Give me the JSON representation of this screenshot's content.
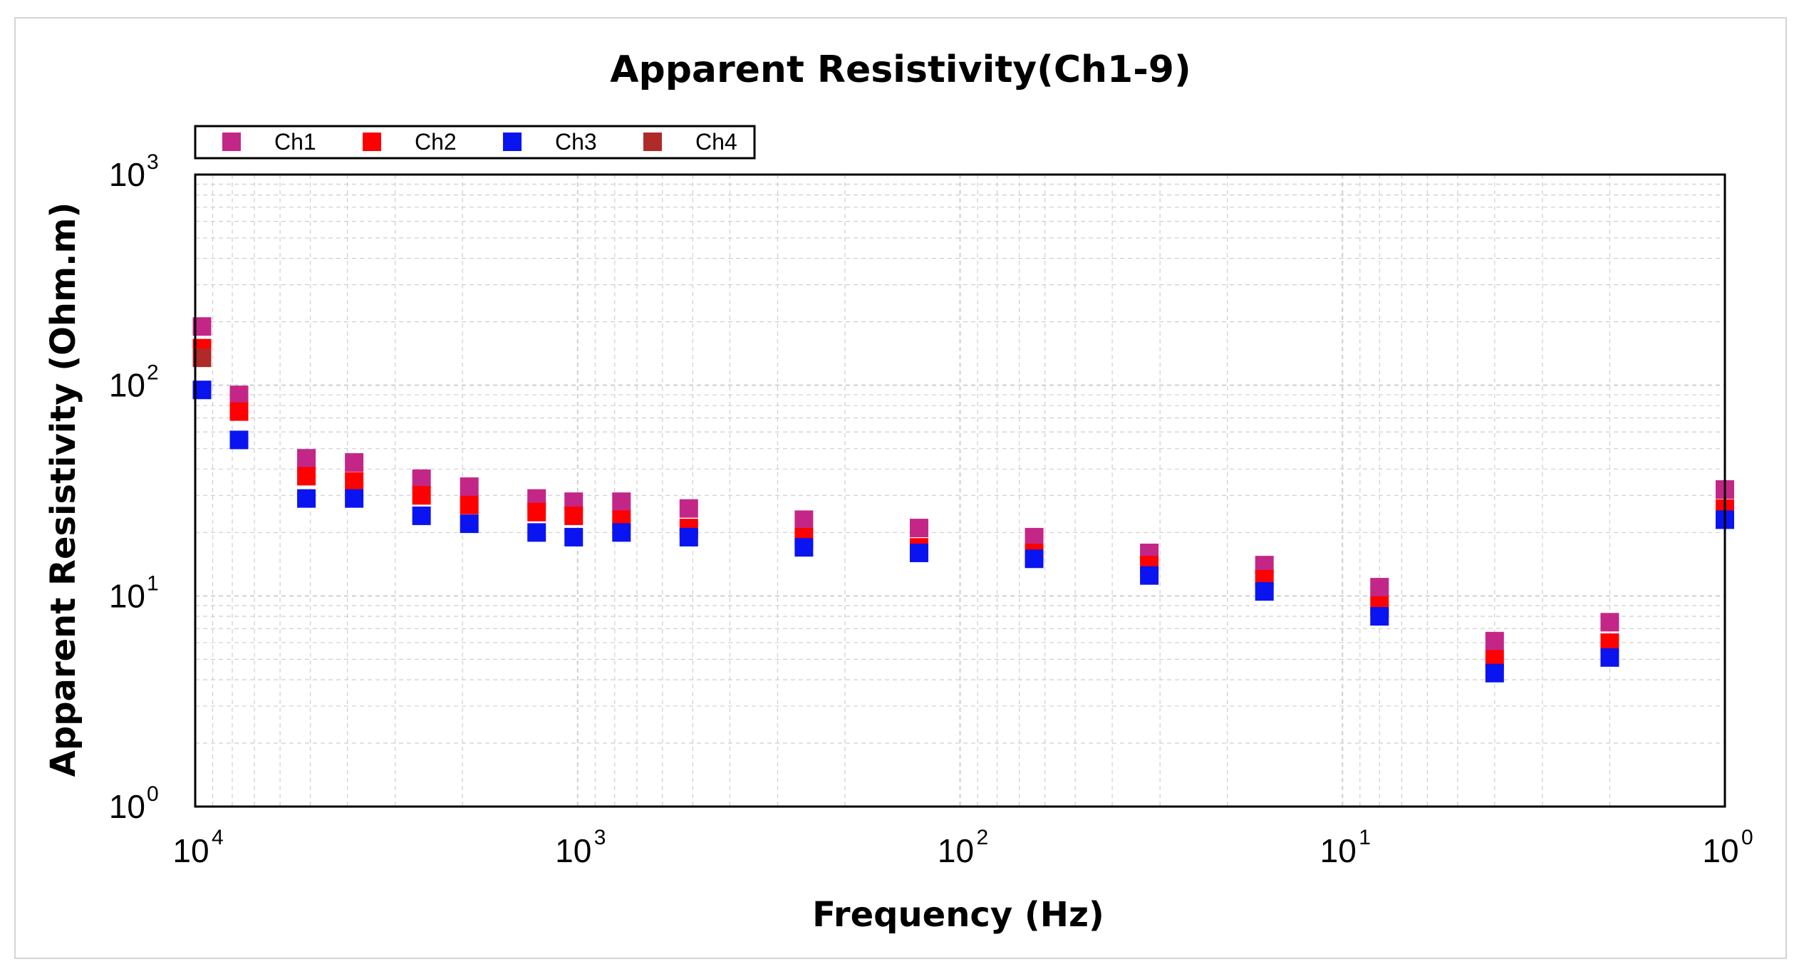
{
  "colors": {
    "Ch1": "#c42687",
    "Ch2": "#ff0000",
    "Ch3": "#0a14f0",
    "Ch4": "#b02a2a",
    "grid": "#cfcfcf",
    "frame": "#000000"
  },
  "chart_data": {
    "type": "scatter",
    "title": "Apparent Resistivity(Ch1-9)",
    "xlabel": "Frequency (Hz)",
    "ylabel": "Apparent Resistivity (Ohm.m)",
    "xscale": "log",
    "yscale": "log",
    "xlim": [
      10000,
      1
    ],
    "ylim": [
      1,
      1000
    ],
    "x_reversed": true,
    "grid": true,
    "legend_position": "top-left",
    "x_ticks": [
      {
        "base": "10",
        "exp": "4",
        "value": 10000
      },
      {
        "base": "10",
        "exp": "3",
        "value": 1000
      },
      {
        "base": "10",
        "exp": "2",
        "value": 100
      },
      {
        "base": "10",
        "exp": "1",
        "value": 10
      },
      {
        "base": "10",
        "exp": "0",
        "value": 1
      }
    ],
    "y_ticks": [
      {
        "base": "10",
        "exp": "0",
        "value": 1
      },
      {
        "base": "10",
        "exp": "1",
        "value": 10
      },
      {
        "base": "10",
        "exp": "2",
        "value": 100
      },
      {
        "base": "10",
        "exp": "3",
        "value": 1000
      }
    ],
    "x": [
      9600,
      7680,
      5120,
      3840,
      2560,
      1920,
      1280,
      1024,
      768,
      512,
      256,
      128,
      64,
      32,
      16,
      8,
      4,
      2,
      1
    ],
    "series": [
      {
        "name": "Ch1",
        "values": [
          190,
          90,
          45,
          43,
          36,
          33,
          29,
          28,
          28,
          26,
          23,
          21,
          19,
          16,
          14,
          11,
          6.1,
          7.5,
          32
        ]
      },
      {
        "name": "Ch2",
        "values": [
          150,
          75,
          37,
          35,
          30,
          27,
          25,
          24,
          23,
          21,
          19,
          17,
          16,
          14,
          12,
          9,
          5,
          6,
          26
        ]
      },
      {
        "name": "Ch3",
        "values": [
          95,
          55,
          29,
          29,
          24,
          22,
          20,
          19,
          20,
          19,
          17,
          16,
          15,
          12.5,
          10.5,
          8,
          4.3,
          5.1,
          23
        ]
      },
      {
        "name": "Ch4",
        "values": [
          135,
          null,
          null,
          null,
          null,
          null,
          null,
          null,
          null,
          null,
          null,
          null,
          null,
          null,
          null,
          null,
          null,
          null,
          null
        ]
      }
    ]
  }
}
